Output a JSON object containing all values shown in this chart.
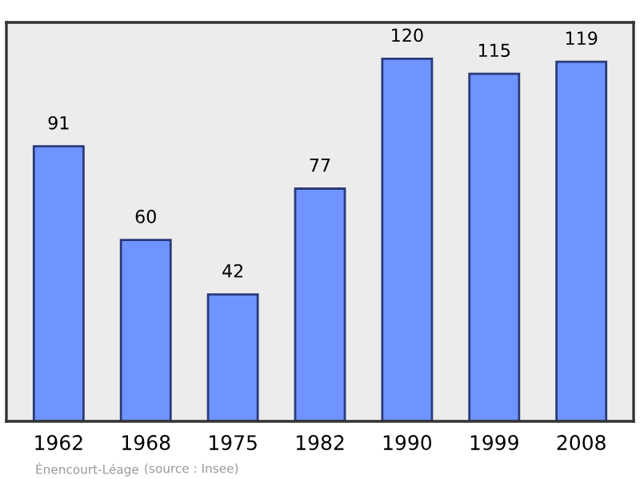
{
  "chart_data": {
    "type": "bar",
    "categories": [
      "1962",
      "1968",
      "1975",
      "1982",
      "1990",
      "1999",
      "2008"
    ],
    "values": [
      91,
      60,
      42,
      77,
      120,
      115,
      119
    ],
    "color": "#7094ff",
    "ylim": [
      0,
      132
    ],
    "data_labels": true,
    "tick_labels": "x",
    "grid": false,
    "annotations": [
      "Énencourt-Léage",
      "(source : Insee)"
    ]
  }
}
